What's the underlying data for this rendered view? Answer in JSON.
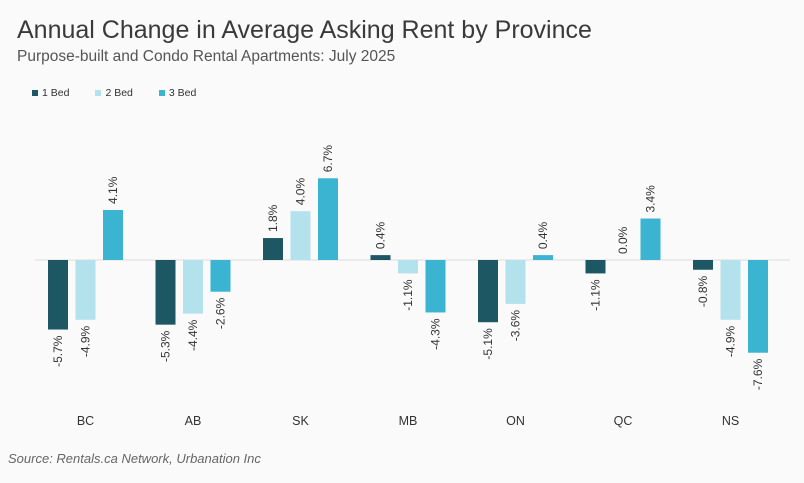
{
  "title": "Annual Change in Average Asking Rent by Province",
  "subtitle": "Purpose-built and Condo Rental Apartments: July 2025",
  "source": "Source: Rentals.ca Network, Urbanation Inc",
  "chart_data": {
    "type": "bar",
    "categories": [
      "BC",
      "AB",
      "SK",
      "MB",
      "ON",
      "QC",
      "NS"
    ],
    "series": [
      {
        "name": "1 Bed",
        "color": "#1d5764",
        "values": [
          -5.7,
          -5.3,
          1.8,
          0.4,
          -5.1,
          -1.1,
          -0.8
        ],
        "labels": [
          "-5.7%",
          "-5.3%",
          "1.8%",
          "0.4%",
          "-5.1%",
          "-1.1%",
          "-0.8%"
        ]
      },
      {
        "name": "2 Bed",
        "color": "#b3e1ec",
        "values": [
          -4.9,
          -4.4,
          4.0,
          -1.1,
          -3.6,
          0.0,
          -4.9
        ],
        "labels": [
          "-4.9%",
          "-4.4%",
          "4.0%",
          "-1.1%",
          "-3.6%",
          "0.0%",
          "-4.9%"
        ]
      },
      {
        "name": "3 Bed",
        "color": "#3bb4d1",
        "values": [
          4.1,
          -2.6,
          6.7,
          -4.3,
          0.4,
          3.4,
          -7.6
        ],
        "labels": [
          "4.1%",
          "-2.6%",
          "6.7%",
          "-4.3%",
          "0.4%",
          "3.4%",
          "-7.6%"
        ]
      }
    ],
    "legend_position": "top-left",
    "grid": false
  }
}
